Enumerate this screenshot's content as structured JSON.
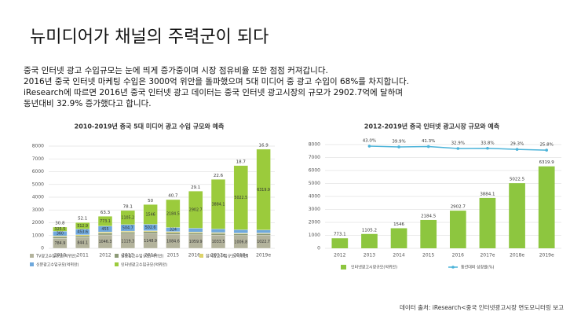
{
  "slide": {
    "title": "뉴미디어가 채널의 주력군이 되다",
    "paragraphs": [
      "중국 인터넷 광고 수입규모는 눈에 띄게 증가중이며 시장 점유비율 또한 점점 커져갑니다.",
      "2016년 중국 인터넷 마케팅 수입은 3000억 위안을 돌파했으며 5대 미디어 중 광고 수입이  68%를 차지합니다.",
      "iResearch에 따르면 2016년 중국 인터넷 광고 데이터는 중국 인터넷 광고시장의 규모가 2902.7억에 달하며",
      "동년대비 32.9% 증가했다고 합니다."
    ],
    "source": "데이터 출처: iResearch<중국 인터넷광고시장 연도모니터링 보고"
  },
  "chart_data": [
    {
      "type": "stacked_bar",
      "title": "2010-2019년 중국 5대 미디어 광고 수입 규모와 예측",
      "categories": [
        "2010",
        "2011",
        "2012",
        "2013",
        "2014",
        "2015",
        "2016e",
        "2017e",
        "2018e",
        "2019e"
      ],
      "series": [
        {
          "name": "TV광고수입규모(억위안)",
          "color": "#b3b39c",
          "values": [
            784.9,
            844.1,
            1046.3,
            1119.3,
            1148.9,
            1084.6,
            1059.9,
            1033.5,
            1006.8,
            1022.7
          ]
        },
        {
          "name": "방송광고수입규모(억위안)",
          "color": "#8c9a76",
          "values": [
            118.5,
            129.4,
            143.3,
            145.4,
            147.6,
            145.4,
            140.0,
            133.5,
            126.0,
            121.0
          ]
        },
        {
          "name": "잡지광고수입규모(억위안)",
          "color": "#ddd36a",
          "values": [
            72.0,
            80.9,
            86.5,
            83.7,
            80.0,
            75.0,
            70.0,
            65.0,
            60.0,
            55.0
          ]
        },
        {
          "name": "신문광고수입규모(억위안)",
          "color": "#6fa8dc",
          "values": [
            360.0,
            453.6,
            455.0,
            504.7,
            502.6,
            324.0,
            303.0,
            280.0,
            260.0,
            240.0
          ]
        },
        {
          "name": "인터넷광고수입규모(억위안)",
          "color": "#9bcb3c",
          "values": [
            325.5,
            512.9,
            773.1,
            1105.2,
            1546.0,
            2184.5,
            2902.7,
            3884.1,
            5022.5,
            6319.9
          ]
        }
      ],
      "top_labels": [
        30.8,
        52.1,
        63.3,
        78.1,
        50.0,
        40.7,
        29.1,
        22.6,
        18.7,
        16.9
      ],
      "ylim": [
        0,
        8000
      ],
      "yticks": [
        0,
        1000,
        2000,
        3000,
        4000,
        5000,
        6000,
        7000,
        8000
      ],
      "grid": true
    },
    {
      "type": "bar_line",
      "title": "2012-2019년 중국 인터넷 광고시장 규모와 예측",
      "categories": [
        "2012",
        "2013",
        "2014",
        "2015",
        "2016",
        "2017e",
        "2018e",
        "2019e"
      ],
      "series": [
        {
          "name": "인터넷광고시장규모(억위안)",
          "color": "#8dc63f",
          "values": [
            773.1,
            1105.2,
            1546.0,
            2184.5,
            2902.7,
            3884.1,
            5022.5,
            6319.9
          ]
        },
        {
          "name": "동년대비 성장률(%)",
          "color": "#4bb3d9",
          "axis": "y2",
          "values": [
            null,
            43.0,
            39.9,
            41.3,
            32.9,
            33.8,
            29.3,
            25.8
          ],
          "value_labels": [
            null,
            "43.0%",
            "39.9%",
            "41.3%",
            "32.9%",
            "33.8%",
            "29.3%",
            "25.8%"
          ]
        }
      ],
      "ylim": [
        0,
        8000
      ],
      "yticks": [
        0,
        1000,
        2000,
        3000,
        4000,
        5000,
        6000,
        7000,
        8000
      ],
      "y2lim": [
        -400,
        50
      ],
      "grid": true
    }
  ]
}
